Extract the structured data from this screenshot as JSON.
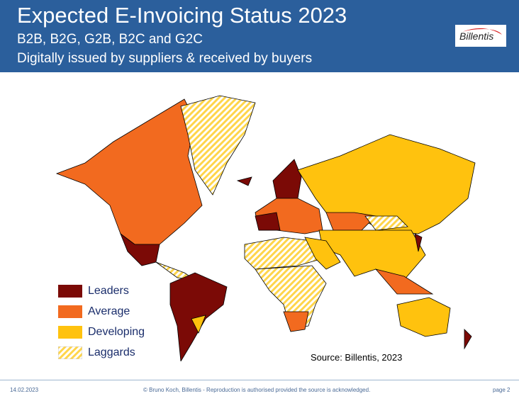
{
  "header": {
    "title": "Expected E-Invoicing Status 2023",
    "subtitle1": "B2B, B2G, G2B, B2C and G2C",
    "subtitle2": "Digitally issued by suppliers & received by buyers",
    "logo_text": "Billentis"
  },
  "legend": [
    {
      "label": "Leaders",
      "color": "#7b0a06"
    },
    {
      "label": "Average",
      "color": "#f26a1f"
    },
    {
      "label": "Developing",
      "color": "#ffc20e"
    },
    {
      "label": "Laggards",
      "color": "hatched-yellow"
    }
  ],
  "source": "Source: Billentis, 2023",
  "footer": {
    "date": "14.02.2023",
    "copyright": "© Bruno Koch, Billentis  -  Reproduction is authorised provided the source is acknowledged.",
    "page": "page 2"
  }
}
